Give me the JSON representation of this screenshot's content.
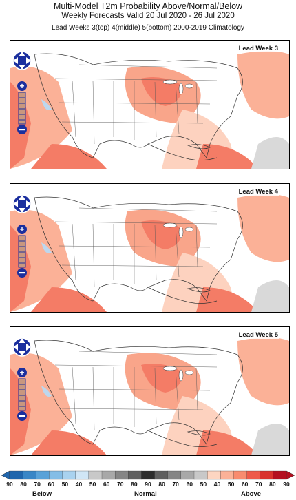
{
  "header": {
    "title": "Multi-Model T2m Probability Above/Normal/Below",
    "subtitle": "Weekly Forecasts    Valid 20 Jul 2020 - 26 Jul 2020",
    "line3": "Lead Weeks 3(top) 4(middle) 5(bottom)    2000-2019 Climatology"
  },
  "panels": [
    {
      "label": "Lead Week 3"
    },
    {
      "label": "Lead Week 4"
    },
    {
      "label": "Lead Week 5"
    }
  ],
  "legend": {
    "ticks": [
      "90",
      "80",
      "70",
      "60",
      "50",
      "40",
      "50",
      "60",
      "70",
      "80",
      "90",
      "80",
      "70",
      "60",
      "50",
      "40",
      "50",
      "60",
      "70",
      "80",
      "90"
    ],
    "below_label": "Below",
    "normal_label": "Normal",
    "above_label": "Above",
    "colors": {
      "below": [
        "#2166ac",
        "#3a86c6",
        "#5aa2d8",
        "#84bde6",
        "#a9d2ef",
        "#d0e6f6"
      ],
      "normal": [
        "#ececec",
        "#c8c8c8",
        "#a8a8a8",
        "#858585",
        "#5f5f5f",
        "#2c2c2c",
        "#5f5f5f",
        "#858585",
        "#a8a8a8",
        "#c8c8c8",
        "#ececec"
      ],
      "above": [
        "#fdd5c1",
        "#fbb197",
        "#f88b6f",
        "#ee5a4a",
        "#d9322d",
        "#b40f20"
      ]
    }
  },
  "colors": {
    "ocean": "#ffffff",
    "land": "#ffffff",
    "above_light": "#fdd2bf",
    "above_mid": "#f9a58a",
    "above_strong": "#f47c66",
    "below_light": "#bdd7ee",
    "normal_light": "#d9d9d9",
    "control_blue": "#1b2f9e"
  }
}
